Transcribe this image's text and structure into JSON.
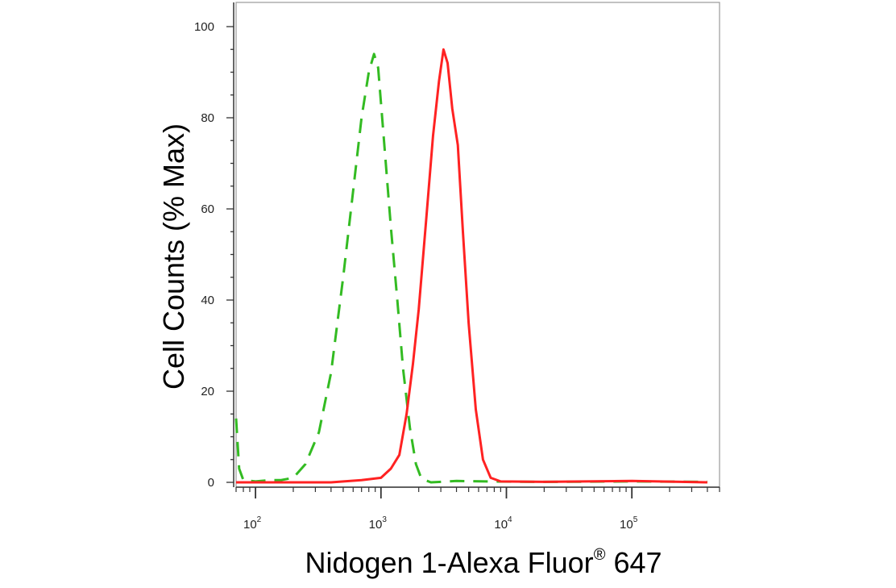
{
  "chart_data": {
    "type": "line",
    "xlabel": "Nidogen 1-Alexa Fluor",
    "xlabel_sup": "®",
    "xlabel_suffix": " 647",
    "ylabel": "Cell Counts (% Max)",
    "x_scale": "log",
    "xlim": [
      70,
      500000
    ],
    "ylim": [
      0,
      105
    ],
    "y_ticks": [
      0,
      20,
      40,
      60,
      80,
      100
    ],
    "x_major_ticks": [
      {
        "value": 100,
        "base": "10",
        "exp": "2"
      },
      {
        "value": 1000,
        "base": "10",
        "exp": "3"
      },
      {
        "value": 10000,
        "base": "10",
        "exp": "4"
      },
      {
        "value": 100000,
        "base": "10",
        "exp": "5"
      }
    ],
    "grid": false,
    "series": [
      {
        "color": "#33bb22",
        "style": "dashed",
        "points": [
          [
            70,
            14
          ],
          [
            74,
            3
          ],
          [
            80,
            0.5
          ],
          [
            100,
            0.2
          ],
          [
            130,
            0.5
          ],
          [
            160,
            0.5
          ],
          [
            200,
            1
          ],
          [
            250,
            4
          ],
          [
            320,
            11
          ],
          [
            400,
            24
          ],
          [
            500,
            45
          ],
          [
            600,
            64
          ],
          [
            700,
            80
          ],
          [
            800,
            90
          ],
          [
            880,
            94
          ],
          [
            950,
            91
          ],
          [
            1050,
            76
          ],
          [
            1200,
            56
          ],
          [
            1350,
            40
          ],
          [
            1500,
            25
          ],
          [
            1700,
            12
          ],
          [
            1900,
            4
          ],
          [
            2100,
            0.8
          ],
          [
            2500,
            0
          ],
          [
            4000,
            0.3
          ],
          [
            7000,
            0.2
          ],
          [
            20000,
            0.1
          ],
          [
            100000,
            0.2
          ],
          [
            400000,
            0.1
          ]
        ]
      },
      {
        "color": "#ff2222",
        "style": "solid",
        "points": [
          [
            70,
            0
          ],
          [
            400,
            0
          ],
          [
            700,
            0.5
          ],
          [
            1000,
            1
          ],
          [
            1200,
            3
          ],
          [
            1400,
            6
          ],
          [
            1600,
            15
          ],
          [
            1800,
            26
          ],
          [
            2000,
            38
          ],
          [
            2300,
            58
          ],
          [
            2600,
            76
          ],
          [
            2900,
            88
          ],
          [
            3150,
            95
          ],
          [
            3400,
            92
          ],
          [
            3700,
            82
          ],
          [
            4100,
            74
          ],
          [
            4500,
            55
          ],
          [
            5000,
            35
          ],
          [
            5700,
            16
          ],
          [
            6500,
            5
          ],
          [
            7500,
            1
          ],
          [
            9000,
            0.2
          ],
          [
            20000,
            0.1
          ],
          [
            100000,
            0.3
          ],
          [
            400000,
            0
          ]
        ]
      }
    ]
  }
}
